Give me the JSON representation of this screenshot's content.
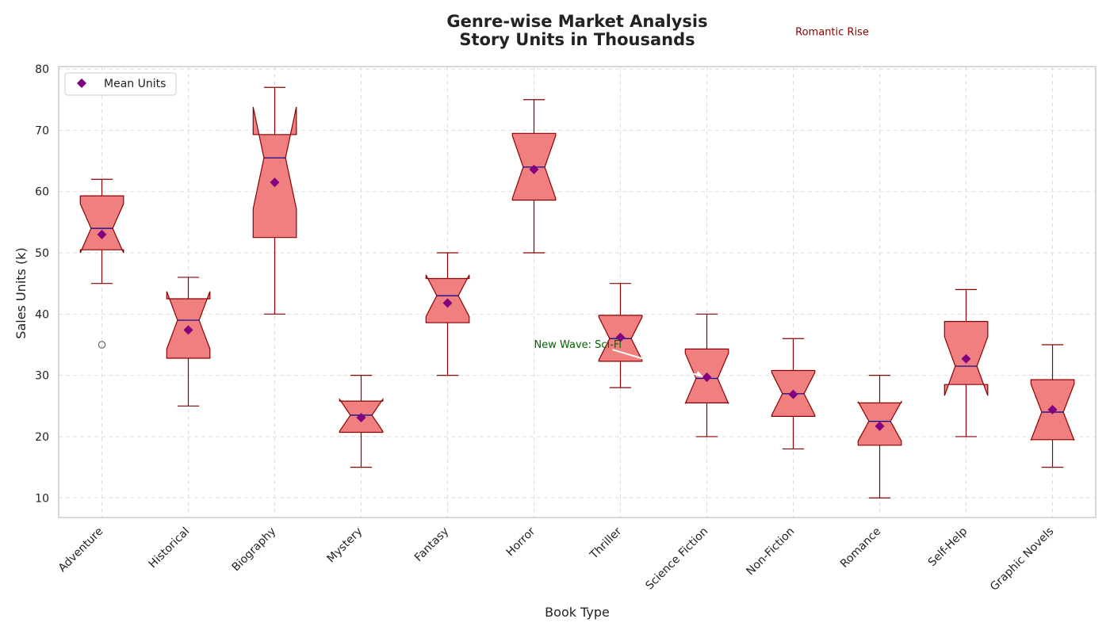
{
  "chart_data": {
    "type": "box",
    "title": "Genre-wise Market Analysis",
    "subtitle": "Story Units in Thousands",
    "xlabel": "Book Type",
    "ylabel": "Sales Units (k)",
    "ylim": [
      6.8,
      80.4
    ],
    "yticks": [
      10,
      20,
      30,
      40,
      50,
      60,
      70,
      80
    ],
    "grid": true,
    "legend": {
      "label": "Mean Units",
      "position": "top-left"
    },
    "colors": {
      "box_fill": "#F08080",
      "box_edge": "#8B0000",
      "median": "#00008B",
      "mean_marker": "#800080",
      "grid": "#dddddd"
    },
    "categories": [
      "Adventure",
      "Historical",
      "Biography",
      "Mystery",
      "Fantasy",
      "Horror",
      "Thriller",
      "Science Fiction",
      "Non-Fiction",
      "Romance",
      "Self-Help",
      "Graphic Novels"
    ],
    "boxes": [
      {
        "q1": 50.5,
        "median": 54.0,
        "q3": 59.3,
        "whisker_low": 45,
        "whisker_high": 62,
        "notch_low": 50.0,
        "notch_high": 58.0,
        "mean": 53.0,
        "outliers": [
          35
        ]
      },
      {
        "q1": 32.8,
        "median": 39.0,
        "q3": 42.5,
        "whisker_low": 25,
        "whisker_high": 46,
        "notch_low": 34.3,
        "notch_high": 43.7,
        "mean": 37.4,
        "outliers": []
      },
      {
        "q1": 52.5,
        "median": 65.5,
        "q3": 69.3,
        "whisker_low": 40,
        "whisker_high": 77,
        "notch_low": 57.2,
        "notch_high": 73.8,
        "mean": 61.5,
        "outliers": []
      },
      {
        "q1": 20.7,
        "median": 23.5,
        "q3": 25.8,
        "whisker_low": 15,
        "whisker_high": 30,
        "notch_low": 20.9,
        "notch_high": 26.1,
        "mean": 23.1,
        "outliers": []
      },
      {
        "q1": 38.6,
        "median": 43.0,
        "q3": 45.8,
        "whisker_low": 30,
        "whisker_high": 50,
        "notch_low": 39.6,
        "notch_high": 46.4,
        "mean": 41.8,
        "outliers": []
      },
      {
        "q1": 58.6,
        "median": 64.0,
        "q3": 69.5,
        "whisker_low": 50,
        "whisker_high": 75,
        "notch_low": 58.9,
        "notch_high": 69.1,
        "mean": 63.6,
        "outliers": []
      },
      {
        "q1": 32.3,
        "median": 36.0,
        "q3": 39.8,
        "whisker_low": 28,
        "whisker_high": 45,
        "notch_low": 32.5,
        "notch_high": 39.5,
        "mean": 36.2,
        "outliers": []
      },
      {
        "q1": 25.5,
        "median": 29.5,
        "q3": 34.3,
        "whisker_low": 20,
        "whisker_high": 40,
        "notch_low": 25.4,
        "notch_high": 33.6,
        "mean": 29.7,
        "outliers": []
      },
      {
        "q1": 23.3,
        "median": 27.0,
        "q3": 30.8,
        "whisker_low": 18,
        "whisker_high": 36,
        "notch_low": 23.5,
        "notch_high": 30.5,
        "mean": 26.9,
        "outliers": []
      },
      {
        "q1": 18.6,
        "median": 22.5,
        "q3": 25.5,
        "whisker_low": 10,
        "whisker_high": 30,
        "notch_low": 19.3,
        "notch_high": 25.7,
        "mean": 21.7,
        "outliers": []
      },
      {
        "q1": 28.5,
        "median": 31.5,
        "q3": 38.8,
        "whisker_low": 20,
        "whisker_high": 44,
        "notch_low": 26.7,
        "notch_high": 36.3,
        "mean": 32.7,
        "outliers": []
      },
      {
        "q1": 19.5,
        "median": 24.0,
        "q3": 29.3,
        "whisker_low": 15,
        "whisker_high": 35,
        "notch_low": 19.4,
        "notch_high": 28.6,
        "mean": 24.4,
        "outliers": []
      }
    ],
    "annotations": [
      {
        "text": "Romantic Rise",
        "color": "#8B0000",
        "text_x": "Non-Fiction",
        "text_y": 86
      },
      {
        "text": "New Wave: Sci-Fi",
        "color": "#006400",
        "text_x": "Horror",
        "text_y": 35
      }
    ]
  }
}
